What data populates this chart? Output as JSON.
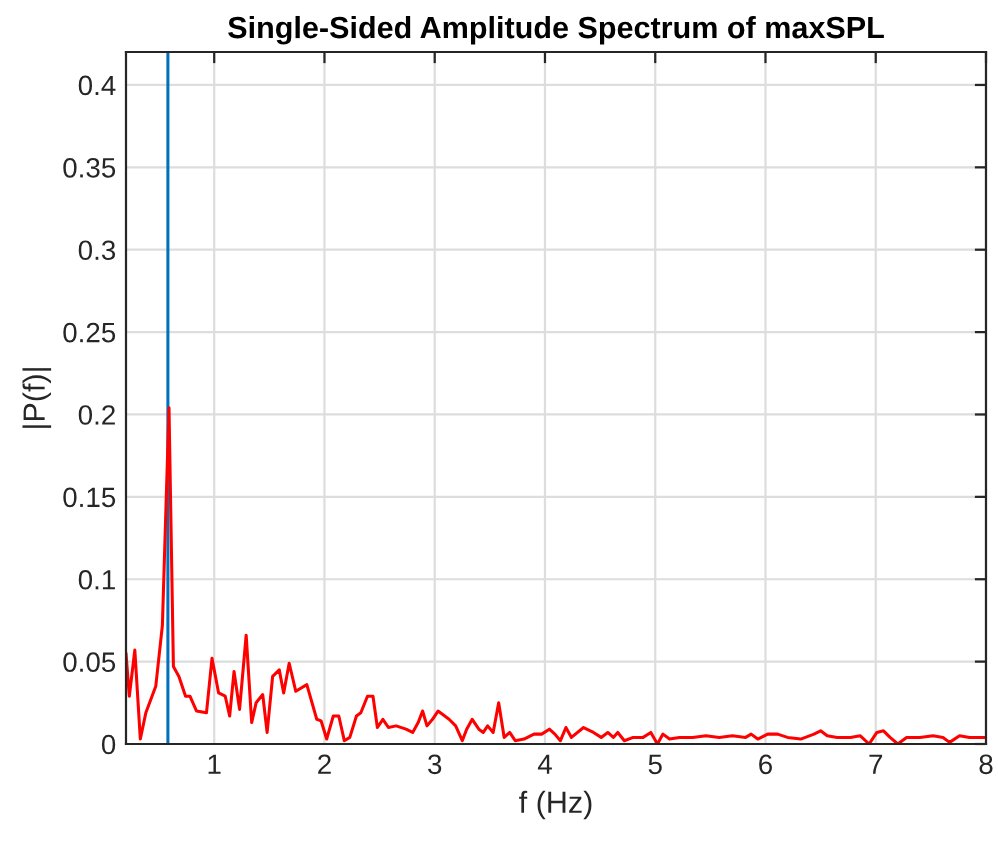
{
  "chart_data": {
    "type": "line",
    "title": "Single-Sided Amplitude Spectrum of maxSPL",
    "xlabel": "f (Hz)",
    "ylabel": "|P(f)|",
    "xlim": [
      0.2,
      8
    ],
    "ylim": [
      0,
      0.42
    ],
    "xticks": [
      1,
      2,
      3,
      4,
      5,
      6,
      7,
      8
    ],
    "yticks": [
      0,
      0.05,
      0.1,
      0.15,
      0.2,
      0.25,
      0.3,
      0.35,
      0.4
    ],
    "grid": true,
    "marker": "none",
    "line_style": "solid",
    "ref_lines": [
      {
        "axis": "x",
        "value": 0.58,
        "color": "#0072bd",
        "line_style": "solid"
      }
    ],
    "series": [
      {
        "color": "#ff0000",
        "x": [
          0.2,
          0.23,
          0.28,
          0.33,
          0.38,
          0.47,
          0.53,
          0.59,
          0.63,
          0.68,
          0.74,
          0.78,
          0.84,
          0.93,
          0.98,
          1.04,
          1.1,
          1.14,
          1.18,
          1.23,
          1.29,
          1.34,
          1.38,
          1.44,
          1.48,
          1.53,
          1.59,
          1.63,
          1.68,
          1.74,
          1.84,
          1.93,
          1.97,
          2.02,
          2.08,
          2.13,
          2.18,
          2.23,
          2.29,
          2.33,
          2.39,
          2.44,
          2.48,
          2.53,
          2.58,
          2.65,
          2.74,
          2.8,
          2.85,
          2.89,
          2.93,
          2.98,
          3.03,
          3.07,
          3.13,
          3.19,
          3.25,
          3.29,
          3.34,
          3.4,
          3.44,
          3.48,
          3.53,
          3.58,
          3.63,
          3.68,
          3.73,
          3.81,
          3.9,
          3.97,
          4.04,
          4.09,
          4.14,
          4.19,
          4.24,
          4.35,
          4.44,
          4.51,
          4.57,
          4.62,
          4.66,
          4.72,
          4.8,
          4.89,
          4.96,
          5.02,
          5.07,
          5.13,
          5.22,
          5.34,
          5.46,
          5.58,
          5.7,
          5.82,
          5.87,
          5.93,
          6.02,
          6.11,
          6.2,
          6.32,
          6.44,
          6.5,
          6.56,
          6.65,
          6.77,
          6.86,
          6.94,
          7.01,
          7.07,
          7.13,
          7.2,
          7.28,
          7.4,
          7.52,
          7.61,
          7.67,
          7.76,
          7.85,
          7.94,
          8.0
        ],
        "values": [
          0.055,
          0.029,
          0.057,
          0.003,
          0.019,
          0.035,
          0.072,
          0.204,
          0.047,
          0.041,
          0.029,
          0.029,
          0.02,
          0.019,
          0.052,
          0.031,
          0.029,
          0.017,
          0.044,
          0.021,
          0.066,
          0.013,
          0.025,
          0.03,
          0.007,
          0.041,
          0.045,
          0.031,
          0.049,
          0.032,
          0.036,
          0.015,
          0.014,
          0.003,
          0.017,
          0.017,
          0.002,
          0.004,
          0.017,
          0.019,
          0.029,
          0.029,
          0.01,
          0.015,
          0.01,
          0.011,
          0.009,
          0.007,
          0.013,
          0.02,
          0.011,
          0.015,
          0.02,
          0.018,
          0.015,
          0.011,
          0.002,
          0.009,
          0.015,
          0.009,
          0.007,
          0.011,
          0.007,
          0.025,
          0.004,
          0.007,
          0.002,
          0.003,
          0.006,
          0.006,
          0.009,
          0.006,
          0.002,
          0.01,
          0.004,
          0.01,
          0.007,
          0.004,
          0.007,
          0.004,
          0.007,
          0.002,
          0.004,
          0.004,
          0.007,
          0.0,
          0.006,
          0.003,
          0.004,
          0.004,
          0.005,
          0.004,
          0.005,
          0.004,
          0.006,
          0.003,
          0.006,
          0.006,
          0.004,
          0.003,
          0.006,
          0.008,
          0.005,
          0.004,
          0.004,
          0.005,
          0.0,
          0.007,
          0.008,
          0.004,
          0.0,
          0.004,
          0.004,
          0.005,
          0.004,
          0.001,
          0.005,
          0.004,
          0.004,
          0.004
        ]
      }
    ]
  }
}
